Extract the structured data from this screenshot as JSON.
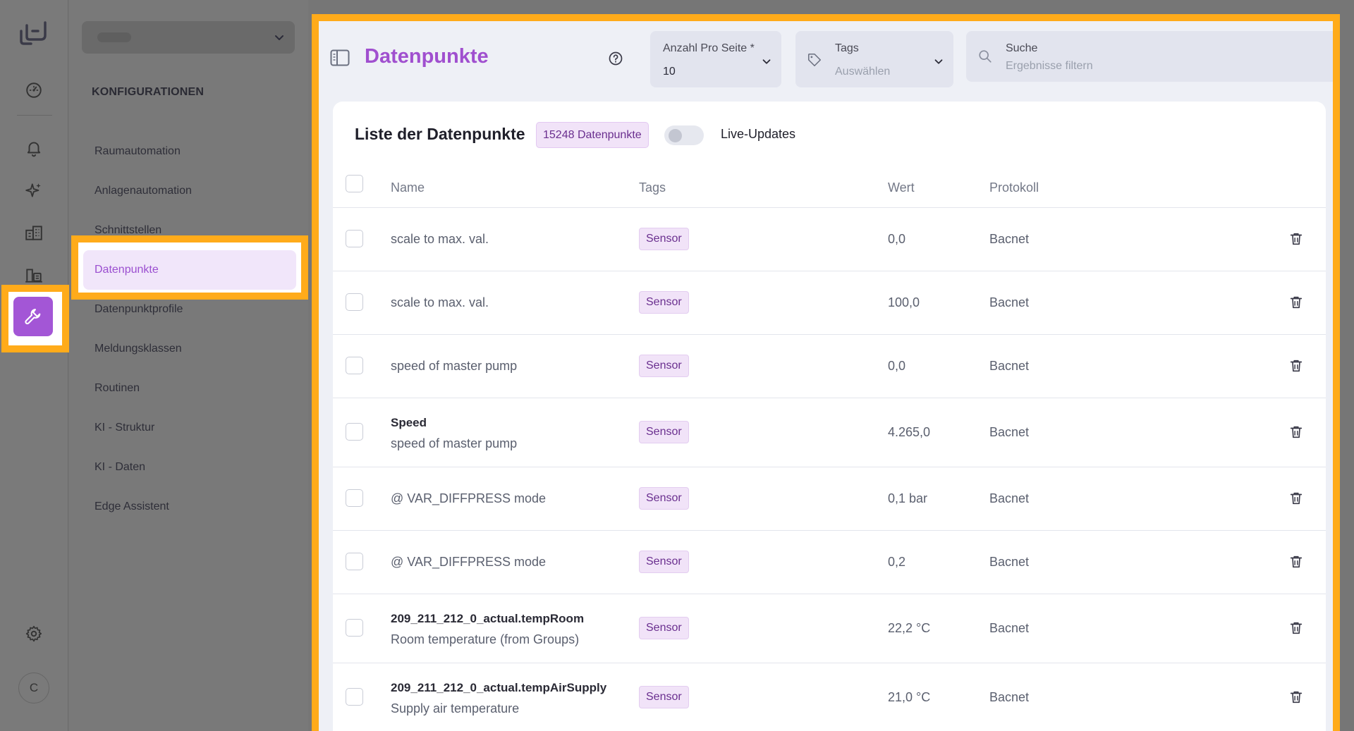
{
  "rail": {
    "icons": [
      "logo-icon",
      "dashboard-icon",
      "bell-icon",
      "sparkles-icon",
      "buildings-icon",
      "devices-icon",
      "wrench-icon",
      "gear-icon"
    ],
    "avatar_initial": "C"
  },
  "sidebar": {
    "section_title": "KONFIGURATIONEN",
    "items": [
      {
        "label": "Raumautomation"
      },
      {
        "label": "Anlagenautomation"
      },
      {
        "label": "Schnittstellen"
      },
      {
        "label": "Datenpunkte",
        "active": true
      },
      {
        "label": "Datenpunktprofile"
      },
      {
        "label": "Meldungsklassen"
      },
      {
        "label": "Routinen"
      },
      {
        "label": "KI - Struktur"
      },
      {
        "label": "KI - Daten"
      },
      {
        "label": "Edge Assistent"
      }
    ]
  },
  "header": {
    "title": "Datenpunkte",
    "per_page": {
      "label": "Anzahl Pro Seite *",
      "value": "10"
    },
    "tags": {
      "label": "Tags",
      "placeholder": "Auswählen"
    },
    "search": {
      "label": "Suche",
      "placeholder": "Ergebnisse filtern"
    }
  },
  "list": {
    "title": "Liste der Datenpunkte",
    "count_badge": "15248 Datenpunkte",
    "live_updates_label": "Live-Updates",
    "live_updates_on": false,
    "columns": {
      "name": "Name",
      "tags": "Tags",
      "value": "Wert",
      "protocol": "Protokoll"
    },
    "rows": [
      {
        "title": "",
        "name": "scale to max. val.",
        "tag": "Sensor",
        "value": "0,0",
        "protocol": "Bacnet"
      },
      {
        "title": "",
        "name": "scale to max. val.",
        "tag": "Sensor",
        "value": "100,0",
        "protocol": "Bacnet"
      },
      {
        "title": "",
        "name": "speed of master pump",
        "tag": "Sensor",
        "value": "0,0",
        "protocol": "Bacnet"
      },
      {
        "title": "Speed",
        "name": "speed of master pump",
        "tag": "Sensor",
        "value": "4.265,0",
        "protocol": "Bacnet"
      },
      {
        "title": "",
        "name": "@ VAR_DIFFPRESS mode",
        "tag": "Sensor",
        "value": "0,1 bar",
        "protocol": "Bacnet"
      },
      {
        "title": "",
        "name": "@ VAR_DIFFPRESS mode",
        "tag": "Sensor",
        "value": "0,2",
        "protocol": "Bacnet"
      },
      {
        "title": "209_211_212_0_actual.tempRoom",
        "name": "Room temperature (from Groups)",
        "tag": "Sensor",
        "value": "22,2 °C",
        "protocol": "Bacnet"
      },
      {
        "title": "209_211_212_0_actual.tempAirSupply",
        "name": "Supply air temperature",
        "tag": "Sensor",
        "value": "21,0 °C",
        "protocol": "Bacnet"
      }
    ]
  },
  "colors": {
    "accent": "#a356d6",
    "highlight": "#ffab1a",
    "tag_bg": "#f1e3f8"
  }
}
